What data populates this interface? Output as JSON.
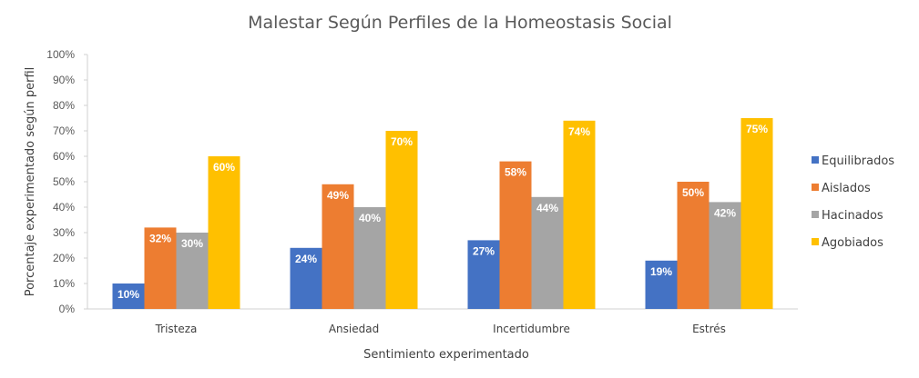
{
  "chart_data": {
    "type": "bar",
    "title": "Malestar  Según Perfiles de la Homeostasis Social",
    "xlabel": "Sentimiento experimentado",
    "ylabel": "Porcentaje experimentado según perfil",
    "categories": [
      "Tristeza",
      "Ansiedad",
      "Incertidumbre",
      "Estrés"
    ],
    "ylim": [
      0,
      100
    ],
    "yticks": [
      0,
      10,
      20,
      30,
      40,
      50,
      60,
      70,
      80,
      90,
      100
    ],
    "ytick_suffix": "%",
    "grid": false,
    "legend": "right",
    "series": [
      {
        "name": "Equilibrados",
        "color": "#4472C4",
        "values": [
          10,
          24,
          27,
          19
        ]
      },
      {
        "name": "Aislados",
        "color": "#ED7D31",
        "values": [
          32,
          49,
          58,
          50
        ]
      },
      {
        "name": "Hacinados",
        "color": "#A5A5A5",
        "values": [
          30,
          40,
          44,
          42
        ]
      },
      {
        "name": "Agobiados",
        "color": "#FFC000",
        "values": [
          60,
          70,
          74,
          75
        ]
      }
    ]
  }
}
